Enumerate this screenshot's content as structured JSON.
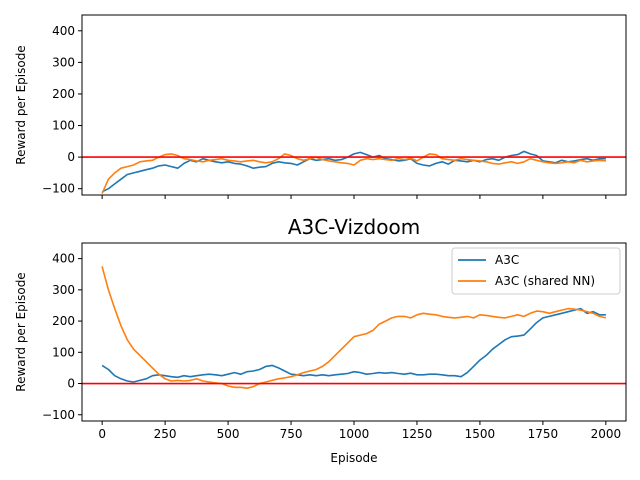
{
  "chart_data": [
    {
      "type": "line",
      "title": "",
      "xlabel": "",
      "ylabel": "Reward per Episode",
      "xlim": [
        -80,
        2080
      ],
      "ylim": [
        -120,
        450
      ],
      "xticks": [
        0,
        250,
        500,
        750,
        1000,
        1250,
        1500,
        1750,
        2000
      ],
      "show_xtick_labels": false,
      "yticks": [
        -100,
        0,
        100,
        200,
        300,
        400
      ],
      "ytick_labels": [
        "−100",
        "0",
        "100",
        "200",
        "300",
        "400"
      ],
      "hline": {
        "y": 0,
        "color": "#ff0000"
      },
      "legend": false,
      "series": [
        {
          "color": "#1f77b4",
          "x": [
            0,
            25,
            50,
            75,
            100,
            125,
            150,
            175,
            200,
            225,
            250,
            275,
            300,
            325,
            350,
            375,
            400,
            425,
            450,
            475,
            500,
            525,
            550,
            575,
            600,
            625,
            650,
            675,
            700,
            725,
            750,
            775,
            800,
            825,
            850,
            875,
            900,
            925,
            950,
            975,
            1000,
            1025,
            1050,
            1075,
            1100,
            1125,
            1150,
            1175,
            1200,
            1225,
            1250,
            1275,
            1300,
            1325,
            1350,
            1375,
            1400,
            1425,
            1450,
            1475,
            1500,
            1525,
            1550,
            1575,
            1600,
            1625,
            1650,
            1675,
            1700,
            1725,
            1750,
            1775,
            1800,
            1825,
            1850,
            1875,
            1900,
            1925,
            1950,
            1975,
            2000
          ],
          "y": [
            -110,
            -100,
            -85,
            -70,
            -55,
            -50,
            -45,
            -40,
            -35,
            -28,
            -25,
            -30,
            -35,
            -20,
            -10,
            -15,
            -5,
            -10,
            -15,
            -18,
            -15,
            -20,
            -22,
            -28,
            -35,
            -32,
            -30,
            -20,
            -15,
            -18,
            -20,
            -25,
            -15,
            -5,
            -10,
            -8,
            -5,
            -10,
            -8,
            0,
            10,
            15,
            8,
            0,
            5,
            -5,
            -8,
            -12,
            -10,
            -5,
            -20,
            -25,
            -28,
            -20,
            -15,
            -22,
            -10,
            -12,
            -15,
            -10,
            -15,
            -8,
            -5,
            -10,
            0,
            5,
            8,
            18,
            10,
            5,
            -12,
            -15,
            -18,
            -10,
            -15,
            -12,
            -8,
            -5,
            -10,
            -5,
            -5
          ]
        },
        {
          "color": "#ff7f0e",
          "x": [
            0,
            25,
            50,
            75,
            100,
            125,
            150,
            175,
            200,
            225,
            250,
            275,
            300,
            325,
            350,
            375,
            400,
            425,
            450,
            475,
            500,
            525,
            550,
            575,
            600,
            625,
            650,
            675,
            700,
            725,
            750,
            775,
            800,
            825,
            850,
            875,
            900,
            925,
            950,
            975,
            1000,
            1025,
            1050,
            1075,
            1100,
            1125,
            1150,
            1175,
            1200,
            1225,
            1250,
            1275,
            1300,
            1325,
            1350,
            1375,
            1400,
            1425,
            1450,
            1475,
            1500,
            1525,
            1550,
            1575,
            1600,
            1625,
            1650,
            1675,
            1700,
            1725,
            1750,
            1775,
            1800,
            1825,
            1850,
            1875,
            1900,
            1925,
            1950,
            1975,
            2000
          ],
          "y": [
            -115,
            -70,
            -50,
            -35,
            -30,
            -25,
            -15,
            -12,
            -10,
            0,
            8,
            10,
            5,
            -5,
            -8,
            -12,
            -15,
            -10,
            -8,
            -5,
            -10,
            -12,
            -15,
            -12,
            -10,
            -15,
            -18,
            -15,
            -5,
            10,
            5,
            -5,
            -10,
            -5,
            0,
            -8,
            -12,
            -15,
            -18,
            -20,
            -25,
            -10,
            -5,
            -8,
            -5,
            -8,
            -10,
            -5,
            -8,
            -3,
            -12,
            0,
            10,
            8,
            -5,
            -8,
            -10,
            -5,
            -8,
            -10,
            -12,
            -15,
            -20,
            -22,
            -18,
            -15,
            -20,
            -15,
            -5,
            -10,
            -15,
            -18,
            -20,
            -18,
            -15,
            -18,
            -10,
            -15,
            -12,
            -10,
            -12
          ]
        }
      ]
    },
    {
      "type": "line",
      "title": "A3C-Vizdoom",
      "xlabel": "Episode",
      "ylabel": "Reward per Episode",
      "xlim": [
        -80,
        2080
      ],
      "ylim": [
        -120,
        450
      ],
      "xticks": [
        0,
        250,
        500,
        750,
        1000,
        1250,
        1500,
        1750,
        2000
      ],
      "xtick_labels": [
        "0",
        "250",
        "500",
        "750",
        "1000",
        "1250",
        "1500",
        "1750",
        "2000"
      ],
      "show_xtick_labels": true,
      "yticks": [
        -100,
        0,
        100,
        200,
        300,
        400
      ],
      "ytick_labels": [
        "−100",
        "0",
        "100",
        "200",
        "300",
        "400"
      ],
      "hline": {
        "y": 0,
        "color": "#ff0000"
      },
      "legend": true,
      "legend_loc": "upper right",
      "series": [
        {
          "name": "A3C",
          "color": "#1f77b4",
          "x": [
            0,
            25,
            50,
            75,
            100,
            125,
            150,
            175,
            200,
            225,
            250,
            275,
            300,
            325,
            350,
            375,
            400,
            425,
            450,
            475,
            500,
            525,
            550,
            575,
            600,
            625,
            650,
            675,
            700,
            725,
            750,
            775,
            800,
            825,
            850,
            875,
            900,
            925,
            950,
            975,
            1000,
            1025,
            1050,
            1075,
            1100,
            1125,
            1150,
            1175,
            1200,
            1225,
            1250,
            1275,
            1300,
            1325,
            1350,
            1375,
            1400,
            1425,
            1450,
            1475,
            1500,
            1525,
            1550,
            1575,
            1600,
            1625,
            1650,
            1675,
            1700,
            1725,
            1750,
            1775,
            1800,
            1825,
            1850,
            1875,
            1900,
            1925,
            1950,
            1975,
            2000
          ],
          "y": [
            58,
            45,
            25,
            15,
            8,
            5,
            10,
            15,
            25,
            28,
            25,
            22,
            20,
            25,
            22,
            25,
            28,
            30,
            28,
            25,
            30,
            35,
            30,
            38,
            40,
            45,
            55,
            58,
            50,
            40,
            30,
            28,
            25,
            28,
            25,
            28,
            25,
            28,
            30,
            32,
            38,
            35,
            30,
            32,
            35,
            33,
            35,
            32,
            30,
            33,
            28,
            28,
            30,
            30,
            28,
            25,
            25,
            22,
            35,
            55,
            75,
            90,
            110,
            125,
            140,
            150,
            152,
            155,
            175,
            195,
            210,
            215,
            220,
            225,
            230,
            235,
            240,
            225,
            230,
            220,
            220
          ]
        },
        {
          "name": "A3C (shared NN)",
          "color": "#ff7f0e",
          "x": [
            0,
            25,
            50,
            75,
            100,
            125,
            150,
            175,
            200,
            225,
            250,
            275,
            300,
            325,
            350,
            375,
            400,
            425,
            450,
            475,
            500,
            525,
            550,
            575,
            600,
            625,
            650,
            675,
            700,
            725,
            750,
            775,
            800,
            825,
            850,
            875,
            900,
            925,
            950,
            975,
            1000,
            1025,
            1050,
            1075,
            1100,
            1125,
            1150,
            1175,
            1200,
            1225,
            1250,
            1275,
            1300,
            1325,
            1350,
            1375,
            1400,
            1425,
            1450,
            1475,
            1500,
            1525,
            1550,
            1575,
            1600,
            1625,
            1650,
            1675,
            1700,
            1725,
            1750,
            1775,
            1800,
            1825,
            1850,
            1875,
            1900,
            1925,
            1950,
            1975,
            2000
          ],
          "y": [
            375,
            300,
            240,
            185,
            140,
            110,
            90,
            70,
            50,
            30,
            15,
            8,
            10,
            8,
            10,
            15,
            8,
            5,
            2,
            0,
            -8,
            -12,
            -12,
            -15,
            -10,
            0,
            5,
            10,
            15,
            18,
            22,
            28,
            35,
            40,
            45,
            55,
            70,
            90,
            110,
            130,
            150,
            155,
            160,
            170,
            190,
            200,
            210,
            215,
            215,
            210,
            220,
            225,
            222,
            220,
            215,
            212,
            210,
            212,
            215,
            210,
            220,
            218,
            215,
            212,
            210,
            215,
            220,
            215,
            225,
            232,
            230,
            225,
            230,
            235,
            240,
            238,
            235,
            230,
            225,
            215,
            210
          ]
        }
      ]
    }
  ]
}
